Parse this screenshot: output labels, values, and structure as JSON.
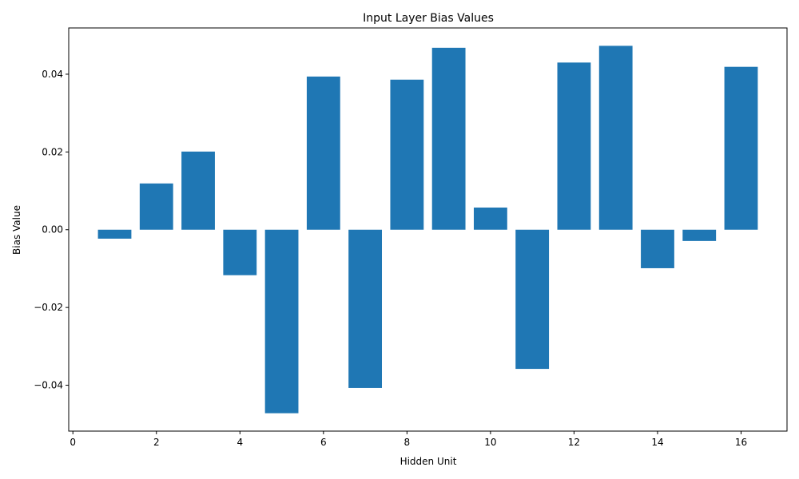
{
  "chart_data": {
    "type": "bar",
    "title": "Input Layer Bias Values",
    "xlabel": "Hidden Unit",
    "ylabel": "Bias Value",
    "x": [
      1,
      2,
      3,
      4,
      5,
      6,
      7,
      8,
      9,
      10,
      11,
      12,
      13,
      14,
      15,
      16
    ],
    "values": [
      -0.0023,
      0.0119,
      0.0201,
      -0.0117,
      -0.0472,
      0.0394,
      -0.0407,
      0.0386,
      0.0468,
      0.0057,
      -0.0358,
      0.043,
      0.0473,
      -0.0099,
      -0.0029,
      0.0419
    ],
    "xlim": [
      -0.1,
      17.1
    ],
    "ylim": [
      -0.0518,
      0.0519
    ],
    "xticks": [
      0,
      2,
      4,
      6,
      8,
      10,
      12,
      14,
      16
    ],
    "xtick_labels": [
      "0",
      "2",
      "4",
      "6",
      "8",
      "10",
      "12",
      "14",
      "16"
    ],
    "yticks": [
      -0.04,
      -0.02,
      0.0,
      0.02,
      0.04
    ],
    "ytick_labels": [
      "−0.04",
      "−0.02",
      "0.00",
      "0.02",
      "0.04"
    ],
    "bar_width": 0.8,
    "bar_color": "#1f77b4",
    "grid": false,
    "legend": "none"
  }
}
